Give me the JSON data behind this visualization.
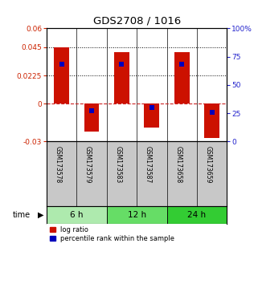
{
  "title": "GDS2708 / 1016",
  "samples": [
    "GSM173578",
    "GSM173579",
    "GSM173583",
    "GSM173587",
    "GSM173658",
    "GSM173659"
  ],
  "log_ratios": [
    0.045,
    -0.022,
    0.041,
    -0.019,
    0.041,
    -0.027
  ],
  "percentile_ranks": [
    0.68,
    0.27,
    0.68,
    0.3,
    0.68,
    0.26
  ],
  "time_groups": [
    {
      "label": "6 h",
      "span": [
        0,
        2
      ],
      "color": "#aeeaae"
    },
    {
      "label": "12 h",
      "span": [
        2,
        4
      ],
      "color": "#66dd66"
    },
    {
      "label": "24 h",
      "span": [
        4,
        6
      ],
      "color": "#33cc33"
    }
  ],
  "ylim_left": [
    -0.03,
    0.06
  ],
  "ylim_right": [
    0.0,
    1.0
  ],
  "yticks_left": [
    -0.03,
    0.0,
    0.0225,
    0.045,
    0.06
  ],
  "ytick_labels_left": [
    "-0.03",
    "0",
    "0.0225",
    "0.045",
    "0.06"
  ],
  "yticks_right": [
    0.0,
    0.25,
    0.5,
    0.75,
    1.0
  ],
  "ytick_labels_right": [
    "0",
    "25",
    "50",
    "75",
    "100%"
  ],
  "hlines_dotted": [
    0.045,
    0.0225
  ],
  "hline_dashed": 0.0,
  "bar_color": "#cc1100",
  "dot_color": "#0000bb",
  "bar_width": 0.5,
  "dot_size": 18,
  "left_color": "#cc2200",
  "right_color": "#2222cc",
  "background_color": "#ffffff",
  "label_bg": "#c8c8c8",
  "legend_items": [
    "log ratio",
    "percentile rank within the sample"
  ]
}
